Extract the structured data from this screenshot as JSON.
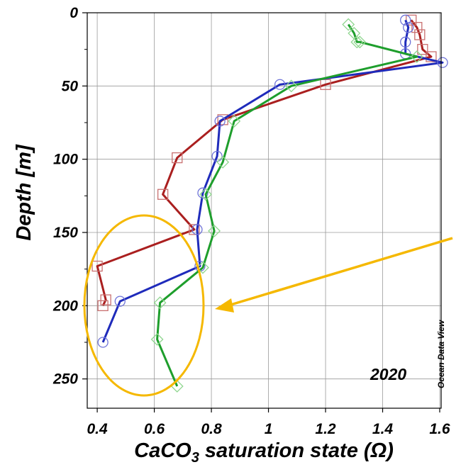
{
  "chart_data": {
    "type": "line",
    "xlabel_main": "CaCO",
    "xlabel_sub": "3",
    "xlabel_rest": " saturation state (Ω)",
    "ylabel": "Depth [m]",
    "xlim": [
      0.365,
      1.605
    ],
    "ylim": [
      0,
      270
    ],
    "y_inverted": true,
    "x_ticks": [
      "0.4",
      "0.6",
      "0.8",
      "1",
      "1.2",
      "1.4",
      "1.6"
    ],
    "x_tick_values": [
      0.4,
      0.6,
      0.8,
      1.0,
      1.2,
      1.4,
      1.6
    ],
    "y_ticks": [
      "0",
      "50",
      "100",
      "150",
      "200",
      "250"
    ],
    "y_tick_values": [
      0,
      50,
      100,
      150,
      200,
      250
    ],
    "grid": true,
    "annotations": {
      "year": "2020",
      "watermark": "Ocean Data View"
    },
    "highlight_color": "#f5b800",
    "series": [
      {
        "color": "#aa1f1f",
        "marker": "square",
        "x": [
          1.5,
          1.52,
          1.53,
          1.54,
          1.57,
          1.2,
          0.84,
          0.68,
          0.63,
          0.74,
          0.4,
          0.43,
          0.42
        ],
        "y": [
          5,
          10,
          15,
          25,
          30,
          49,
          73,
          99,
          124,
          148,
          173,
          196,
          200
        ]
      },
      {
        "color": "#1f2bbb",
        "marker": "circle",
        "x": [
          1.48,
          1.49,
          1.48,
          1.48,
          1.61,
          1.04,
          0.83,
          0.82,
          0.77,
          0.75,
          0.76,
          0.48,
          0.42
        ],
        "y": [
          5,
          10,
          20,
          28,
          34,
          49,
          74,
          98,
          123,
          148,
          173,
          197,
          225
        ]
      },
      {
        "color": "#1e9e2c",
        "marker": "diamond",
        "x": [
          1.28,
          1.3,
          1.31,
          1.32,
          1.52,
          1.08,
          0.88,
          0.84,
          0.78,
          0.81,
          0.77,
          0.62,
          0.61,
          0.68
        ],
        "y": [
          8,
          14,
          20,
          20,
          30,
          50,
          74,
          102,
          124,
          149,
          174,
          198,
          223,
          255
        ]
      }
    ]
  }
}
